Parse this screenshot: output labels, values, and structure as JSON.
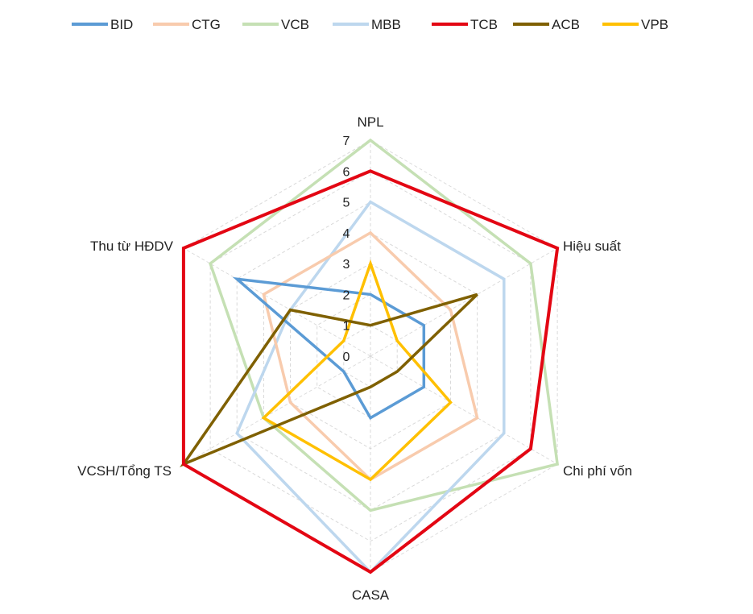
{
  "chart_data": {
    "type": "radar",
    "categories": [
      "NPL",
      "Hiệu suất",
      "Chi phí vốn",
      "CASA",
      "VCSH/Tổng TS",
      "Thu từ HĐDV"
    ],
    "ticks": [
      "0",
      "1",
      "2",
      "3",
      "4",
      "5",
      "6",
      "7"
    ],
    "rlim": [
      0,
      7
    ],
    "grid": true,
    "legend_position": "top",
    "series": [
      {
        "name": "BID",
        "color": "#5B9BD5",
        "values": [
          2,
          2,
          2,
          2,
          1,
          5
        ]
      },
      {
        "name": "CTG",
        "color": "#F8CBAD",
        "values": [
          4,
          3,
          4,
          4,
          3,
          4
        ]
      },
      {
        "name": "VCB",
        "color": "#C5E0B4",
        "values": [
          7,
          6,
          7,
          5,
          4,
          6
        ]
      },
      {
        "name": "MBB",
        "color": "#BDD7EE",
        "values": [
          5,
          5,
          5,
          7,
          5,
          3
        ]
      },
      {
        "name": "TCB",
        "color": "#E30613",
        "values": [
          6,
          7,
          6,
          7,
          7,
          7
        ]
      },
      {
        "name": "ACB",
        "color": "#7F6000",
        "values": [
          1,
          4,
          1,
          1,
          7,
          3
        ]
      },
      {
        "name": "VPB",
        "color": "#FFC000",
        "values": [
          3,
          1,
          3,
          4,
          4,
          1
        ]
      }
    ]
  }
}
